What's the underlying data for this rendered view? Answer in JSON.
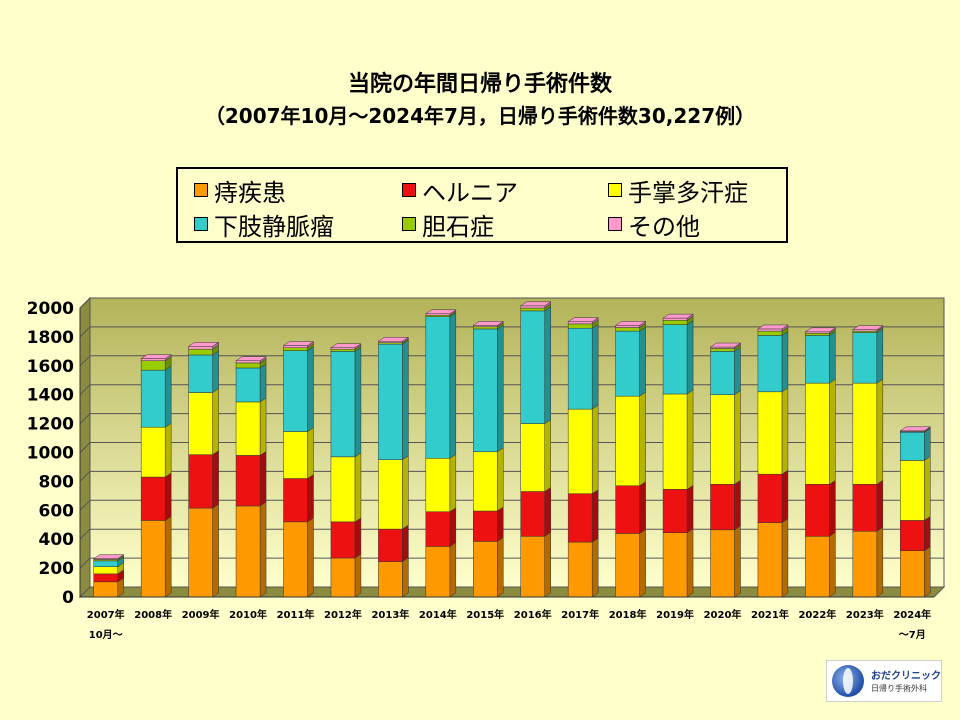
{
  "chart_data": {
    "type": "bar",
    "stacked": true,
    "title": "当院の年間日帰り手術件数",
    "subtitle": "（2007年10月～2024年7月，日帰り手術件数30,227例）",
    "xlabel": "",
    "ylabel": "",
    "ylim": [
      0,
      2000
    ],
    "yticks": [
      0,
      200,
      400,
      600,
      800,
      1000,
      1200,
      1400,
      1600,
      1800,
      2000
    ],
    "grid": true,
    "legend_position": "top",
    "categories": [
      "2007年",
      "2008年",
      "2009年",
      "2010年",
      "2011年",
      "2012年",
      "2013年",
      "2014年",
      "2015年",
      "2016年",
      "2017年",
      "2018年",
      "2019年",
      "2020年",
      "2021年",
      "2022年",
      "2023年",
      "2024年"
    ],
    "category_sublabels": [
      "10月～",
      "",
      "",
      "",
      "",
      "",
      "",
      "",
      "",
      "",
      "",
      "",
      "",
      "",
      "",
      "",
      "",
      "～7月"
    ],
    "series": [
      {
        "name": "痔疾患",
        "color": "#ff9900",
        "values": [
          105,
          530,
          615,
          630,
          520,
          270,
          245,
          350,
          385,
          420,
          380,
          440,
          445,
          465,
          515,
          420,
          455,
          320
        ]
      },
      {
        "name": "ヘルニア",
        "color": "#ee1111",
        "values": [
          55,
          300,
          370,
          350,
          300,
          250,
          225,
          240,
          210,
          310,
          335,
          330,
          300,
          315,
          335,
          360,
          325,
          210
        ]
      },
      {
        "name": "手掌多汗症",
        "color": "#ffff00",
        "values": [
          50,
          345,
          430,
          370,
          325,
          450,
          480,
          370,
          410,
          470,
          585,
          620,
          660,
          620,
          570,
          700,
          700,
          415
        ]
      },
      {
        "name": "下肢静脈瘤",
        "color": "#33cccc",
        "values": [
          40,
          395,
          260,
          235,
          560,
          730,
          800,
          980,
          850,
          780,
          560,
          450,
          480,
          300,
          390,
          330,
          350,
          195
        ]
      },
      {
        "name": "胆石症",
        "color": "#99cc00",
        "values": [
          10,
          65,
          40,
          35,
          20,
          15,
          10,
          10,
          15,
          20,
          30,
          25,
          30,
          20,
          30,
          15,
          10,
          5
        ]
      },
      {
        "name": "その他",
        "color": "#ff99cc",
        "values": [
          5,
          15,
          20,
          15,
          15,
          10,
          10,
          10,
          10,
          15,
          15,
          15,
          15,
          10,
          15,
          10,
          10,
          5
        ]
      }
    ]
  },
  "logo": {
    "name": "おだクリニック",
    "sub": "日帰り手術外科"
  }
}
